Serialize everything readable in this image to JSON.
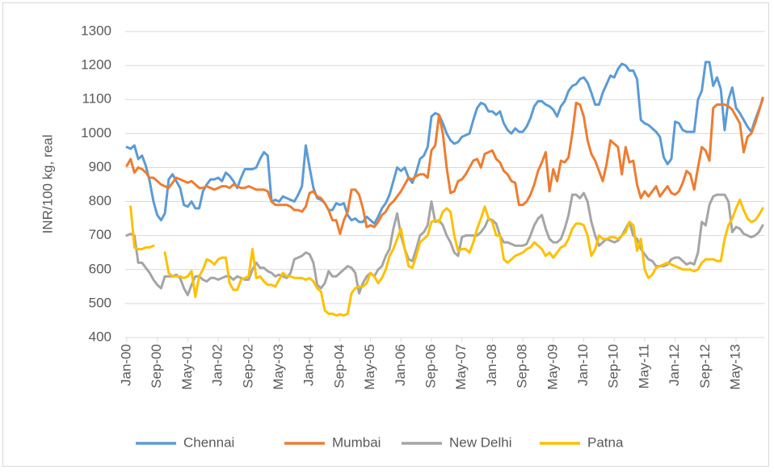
{
  "chart_data": {
    "type": "line",
    "y_label": "INR/100 kg, real",
    "ylim": [
      400,
      1300
    ],
    "yticks": [
      400,
      500,
      600,
      700,
      800,
      900,
      1000,
      1100,
      1200,
      1300
    ],
    "grid": true,
    "legend": "bottom",
    "categories": [
      "Jan-00",
      null,
      null,
      null,
      null,
      null,
      null,
      null,
      "Sep-00",
      null,
      null,
      null,
      null,
      null,
      null,
      null,
      "May-01",
      null,
      null,
      null,
      null,
      null,
      null,
      null,
      "Jan-02",
      null,
      null,
      null,
      null,
      null,
      null,
      null,
      "Sep-02",
      null,
      null,
      null,
      null,
      null,
      null,
      null,
      "May-03",
      null,
      null,
      null,
      null,
      null,
      null,
      null,
      "Jan-04",
      null,
      null,
      null,
      null,
      null,
      null,
      null,
      "Sep-04",
      null,
      null,
      null,
      null,
      null,
      null,
      null,
      "May-05",
      null,
      null,
      null,
      null,
      null,
      null,
      null,
      "Jan-06",
      null,
      null,
      null,
      null,
      null,
      null,
      null,
      "Sep-06",
      null,
      null,
      null,
      null,
      null,
      null,
      null,
      "May-07",
      null,
      null,
      null,
      null,
      null,
      null,
      null,
      "Jan-08",
      null,
      null,
      null,
      null,
      null,
      null,
      null,
      "Sep-08",
      null,
      null,
      null,
      null,
      null,
      null,
      null,
      "May-09",
      null,
      null,
      null,
      null,
      null,
      null,
      null,
      "Jan-10",
      null,
      null,
      null,
      null,
      null,
      null,
      null,
      "Sep-10",
      null,
      null,
      null,
      null,
      null,
      null,
      null,
      "May-11",
      null,
      null,
      null,
      null,
      null,
      null,
      null,
      "Jan-12",
      null,
      null,
      null,
      null,
      null,
      null,
      null,
      "Sep-12",
      null,
      null,
      null,
      null,
      null,
      null,
      null,
      "May-13",
      null,
      null,
      null,
      null,
      null,
      null,
      null
    ],
    "series": [
      {
        "name": "Chennai",
        "color": "#5b9bd5",
        "values": [
          960,
          955,
          965,
          925,
          935,
          905,
          860,
          800,
          760,
          745,
          765,
          865,
          880,
          860,
          840,
          790,
          785,
          800,
          780,
          780,
          830,
          850,
          865,
          865,
          870,
          860,
          885,
          875,
          860,
          840,
          870,
          895,
          895,
          895,
          900,
          925,
          945,
          935,
          800,
          805,
          800,
          815,
          810,
          805,
          800,
          820,
          845,
          965,
          900,
          840,
          810,
          805,
          795,
          775,
          775,
          795,
          790,
          795,
          760,
          745,
          750,
          740,
          740,
          755,
          745,
          735,
          755,
          780,
          795,
          820,
          860,
          900,
          890,
          900,
          870,
          855,
          885,
          925,
          935,
          960,
          1050,
          1060,
          1055,
          1030,
          1000,
          980,
          970,
          975,
          990,
          995,
          1000,
          1040,
          1075,
          1090,
          1085,
          1065,
          1065,
          1055,
          1065,
          1030,
          1010,
          1000,
          1015,
          1005,
          1005,
          1020,
          1045,
          1080,
          1095,
          1095,
          1085,
          1080,
          1070,
          1050,
          1080,
          1095,
          1125,
          1140,
          1145,
          1160,
          1165,
          1150,
          1120,
          1085,
          1085,
          1120,
          1145,
          1170,
          1165,
          1190,
          1205,
          1200,
          1185,
          1185,
          1160,
          1040,
          1030,
          1025,
          1015,
          1005,
          990,
          930,
          910,
          925,
          1035,
          1030,
          1010,
          1005,
          1005,
          1005,
          1100,
          1125,
          1210,
          1210,
          1140,
          1165,
          1130,
          1010,
          1100,
          1135,
          1075,
          1060,
          1040,
          1020,
          1005,
          1040,
          1070,
          1100
        ]
      },
      {
        "name": "Mumbai",
        "color": "#ed7d31",
        "values": [
          905,
          925,
          885,
          900,
          895,
          885,
          870,
          870,
          860,
          850,
          845,
          840,
          855,
          870,
          865,
          860,
          855,
          860,
          850,
          840,
          840,
          845,
          840,
          835,
          840,
          845,
          845,
          840,
          850,
          845,
          840,
          840,
          845,
          840,
          835,
          835,
          835,
          830,
          800,
          790,
          790,
          790,
          790,
          785,
          775,
          775,
          770,
          785,
          825,
          830,
          815,
          810,
          795,
          775,
          745,
          745,
          705,
          745,
          770,
          835,
          835,
          820,
          780,
          725,
          730,
          725,
          740,
          760,
          770,
          790,
          800,
          815,
          830,
          850,
          870,
          865,
          875,
          880,
          880,
          870,
          950,
          965,
          1055,
          1000,
          900,
          825,
          830,
          860,
          865,
          880,
          900,
          920,
          925,
          900,
          940,
          945,
          950,
          925,
          915,
          890,
          880,
          860,
          855,
          790,
          790,
          800,
          820,
          850,
          890,
          915,
          945,
          830,
          895,
          860,
          920,
          915,
          930,
          1000,
          1090,
          1085,
          1050,
          980,
          940,
          920,
          890,
          860,
          910,
          980,
          970,
          960,
          880,
          960,
          915,
          920,
          850,
          810,
          830,
          815,
          830,
          845,
          815,
          830,
          845,
          825,
          820,
          830,
          855,
          890,
          880,
          835,
          900,
          960,
          950,
          920,
          1075,
          1085,
          1085,
          1085,
          1080,
          1070,
          1050,
          1030,
          945,
          990,
          1000,
          1030,
          1065,
          1105
        ]
      },
      {
        "name": "New Delhi",
        "color": "#a5a5a5",
        "values": [
          700,
          705,
          700,
          620,
          620,
          605,
          590,
          570,
          555,
          545,
          580,
          580,
          580,
          585,
          575,
          545,
          525,
          555,
          580,
          580,
          570,
          565,
          575,
          575,
          570,
          575,
          580,
          580,
          570,
          580,
          575,
          570,
          570,
          600,
          620,
          605,
          605,
          595,
          590,
          580,
          585,
          580,
          575,
          590,
          630,
          635,
          640,
          650,
          645,
          620,
          555,
          545,
          560,
          595,
          580,
          580,
          590,
          600,
          610,
          605,
          590,
          530,
          560,
          580,
          590,
          580,
          600,
          610,
          640,
          660,
          720,
          765,
          700,
          660,
          630,
          625,
          660,
          700,
          710,
          730,
          800,
          740,
          745,
          730,
          700,
          680,
          650,
          640,
          695,
          700,
          700,
          700,
          700,
          710,
          725,
          750,
          745,
          735,
          700,
          680,
          680,
          675,
          670,
          670,
          670,
          675,
          700,
          730,
          750,
          760,
          720,
          690,
          680,
          680,
          690,
          720,
          760,
          820,
          820,
          810,
          825,
          800,
          740,
          700,
          670,
          680,
          690,
          685,
          680,
          685,
          700,
          720,
          740,
          700,
          690,
          660,
          645,
          630,
          625,
          610,
          610,
          610,
          615,
          630,
          635,
          635,
          625,
          615,
          620,
          615,
          650,
          740,
          730,
          790,
          815,
          820,
          820,
          820,
          800,
          710,
          725,
          720,
          705,
          700,
          695,
          700,
          710,
          730
        ]
      },
      {
        "name": "Patna",
        "color": "#ffc000",
        "values": [
          null,
          785,
          665,
          660,
          660,
          665,
          665,
          670,
          null,
          null,
          650,
          590,
          580,
          580,
          580,
          575,
          580,
          595,
          520,
          580,
          600,
          630,
          625,
          615,
          630,
          635,
          635,
          560,
          540,
          540,
          570,
          575,
          580,
          660,
          575,
          580,
          565,
          555,
          555,
          550,
          570,
          590,
          580,
          580,
          575,
          575,
          575,
          570,
          575,
          565,
          545,
          535,
          480,
          470,
          470,
          465,
          468,
          465,
          470,
          530,
          545,
          550,
          550,
          560,
          590,
          580,
          560,
          575,
          600,
          640,
          660,
          690,
          720,
          660,
          610,
          605,
          640,
          680,
          690,
          700,
          740,
          745,
          740,
          770,
          780,
          770,
          700,
          655,
          660,
          660,
          650,
          680,
          720,
          750,
          785,
          750,
          740,
          700,
          700,
          630,
          620,
          630,
          640,
          645,
          650,
          660,
          665,
          680,
          670,
          660,
          640,
          650,
          635,
          650,
          665,
          670,
          690,
          720,
          735,
          735,
          730,
          700,
          640,
          660,
          700,
          690,
          690,
          695,
          695,
          690,
          700,
          710,
          740,
          730,
          655,
          690,
          600,
          575,
          585,
          605,
          610,
          615,
          620,
          615,
          610,
          605,
          600,
          600,
          600,
          595,
          600,
          620,
          630,
          630,
          630,
          625,
          625,
          690,
          730,
          750,
          780,
          805,
          775,
          750,
          740,
          745,
          760,
          780
        ]
      }
    ]
  }
}
